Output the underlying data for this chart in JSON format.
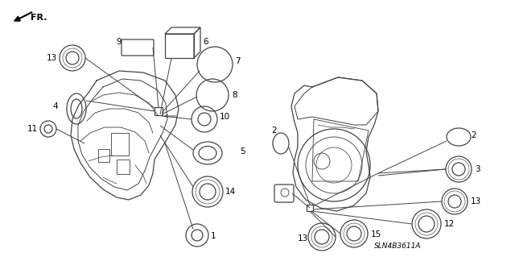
{
  "bg_color": "#ffffff",
  "part_number_label": "SLN4B3611A",
  "fr_label": "FR.",
  "line_color": "#444444",
  "label_color": "#000000"
}
